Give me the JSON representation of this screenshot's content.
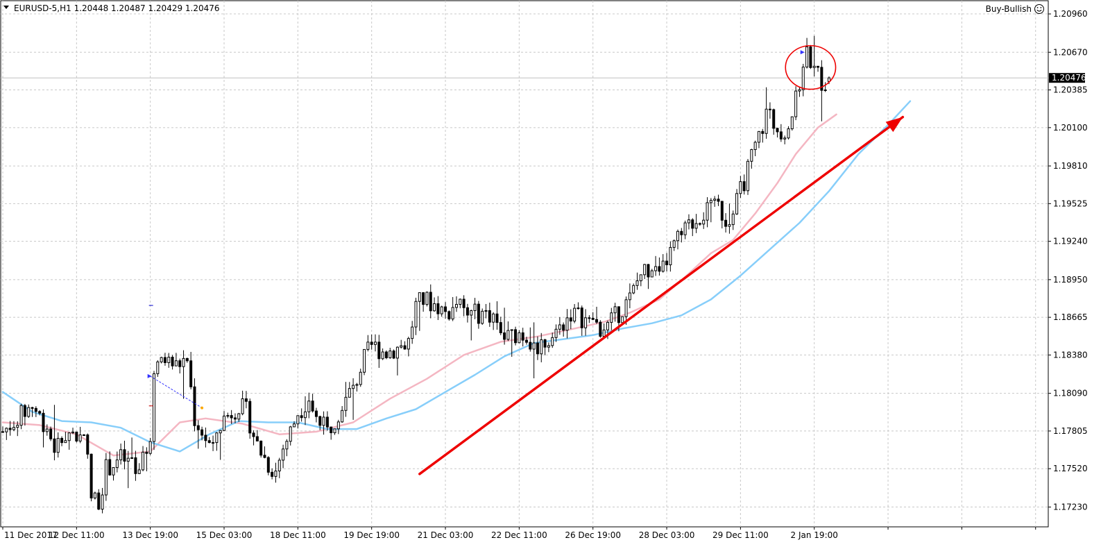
{
  "header": {
    "symbol_info": "EURUSD-5,H1  1.20448 1.20487 1.20429 1.20476",
    "expert_name": "Buy-Bullish",
    "expert_icon": "smiley-icon"
  },
  "colors": {
    "background": "#ffffff",
    "grid": "#c8c8c8",
    "candle": "#000000",
    "ma_fast": "#f4b6c2",
    "ma_slow": "#87cefa",
    "arrow": "#ee0000",
    "circle": "#ee0000",
    "bid_line": "#c0c0c0"
  },
  "chart_data": {
    "type": "candlestick",
    "symbol": "EURUSD-5",
    "timeframe": "H1",
    "last_ohlc": {
      "open": 1.20448,
      "high": 1.20487,
      "low": 1.20429,
      "close": 1.20476
    },
    "current_price": "1.20476",
    "ylim": [
      1.1708,
      1.2106
    ],
    "y_ticks": [
      "1.20960",
      "1.20670",
      "1.20385",
      "1.20100",
      "1.19810",
      "1.19525",
      "1.19240",
      "1.18950",
      "1.18665",
      "1.18380",
      "1.18090",
      "1.17805",
      "1.17520",
      "1.17230"
    ],
    "x_labels": [
      {
        "i": 0,
        "label": "11 Dec 2017"
      },
      {
        "i": 20,
        "label": "12 Dec 11:00"
      },
      {
        "i": 40,
        "label": "13 Dec 19:00"
      },
      {
        "i": 60,
        "label": "15 Dec 03:00"
      },
      {
        "i": 80,
        "label": "18 Dec 11:00"
      },
      {
        "i": 100,
        "label": "19 Dec 19:00"
      },
      {
        "i": 120,
        "label": "21 Dec 03:00"
      },
      {
        "i": 140,
        "label": "22 Dec 11:00"
      },
      {
        "i": 160,
        "label": "26 Dec 19:00"
      },
      {
        "i": 180,
        "label": "28 Dec 03:00"
      },
      {
        "i": 200,
        "label": "29 Dec 11:00"
      },
      {
        "i": 220,
        "label": "2 Jan 19:00"
      }
    ],
    "visible_slots": 284,
    "close_path": [
      [
        0,
        1.178
      ],
      [
        4,
        1.179
      ],
      [
        8,
        1.18
      ],
      [
        12,
        1.1783
      ],
      [
        14,
        1.1768
      ],
      [
        18,
        1.178
      ],
      [
        21,
        1.1775
      ],
      [
        22,
        1.1785
      ],
      [
        24,
        1.173
      ],
      [
        26,
        1.1728
      ],
      [
        28,
        1.1752
      ],
      [
        32,
        1.176
      ],
      [
        35,
        1.1755
      ],
      [
        37,
        1.1745
      ],
      [
        40,
        1.178
      ],
      [
        41,
        1.182
      ],
      [
        43,
        1.1835
      ],
      [
        47,
        1.183
      ],
      [
        50,
        1.1835
      ],
      [
        52,
        1.179
      ],
      [
        55,
        1.1775
      ],
      [
        57,
        1.1765
      ],
      [
        58,
        1.178
      ],
      [
        60,
        1.179
      ],
      [
        64,
        1.18
      ],
      [
        66,
        1.1795
      ],
      [
        69,
        1.177
      ],
      [
        72,
        1.1755
      ],
      [
        74,
        1.175
      ],
      [
        76,
        1.1768
      ],
      [
        78,
        1.178
      ],
      [
        80,
        1.1795
      ],
      [
        83,
        1.1805
      ],
      [
        85,
        1.179
      ],
      [
        88,
        1.178
      ],
      [
        90,
        1.179
      ],
      [
        93,
        1.1805
      ],
      [
        96,
        1.182
      ],
      [
        98,
        1.1835
      ],
      [
        100,
        1.1845
      ],
      [
        104,
        1.184
      ],
      [
        108,
        1.1845
      ],
      [
        110,
        1.1848
      ],
      [
        112,
        1.1875
      ],
      [
        114,
        1.188
      ],
      [
        118,
        1.1875
      ],
      [
        120,
        1.187
      ],
      [
        124,
        1.1875
      ],
      [
        126,
        1.1868
      ],
      [
        130,
        1.187
      ],
      [
        133,
        1.1868
      ],
      [
        136,
        1.185
      ],
      [
        140,
        1.1855
      ],
      [
        143,
        1.185
      ],
      [
        145,
        1.1845
      ],
      [
        148,
        1.185
      ],
      [
        150,
        1.1855
      ],
      [
        154,
        1.187
      ],
      [
        158,
        1.1865
      ],
      [
        160,
        1.1858
      ],
      [
        164,
        1.186
      ],
      [
        167,
        1.187
      ],
      [
        170,
        1.188
      ],
      [
        173,
        1.19
      ],
      [
        176,
        1.1905
      ],
      [
        178,
        1.1895
      ],
      [
        180,
        1.191
      ],
      [
        183,
        1.1925
      ],
      [
        186,
        1.1935
      ],
      [
        190,
        1.1945
      ],
      [
        194,
        1.195
      ],
      [
        196,
        1.194
      ],
      [
        198,
        1.1945
      ],
      [
        201,
        1.197
      ],
      [
        204,
        1.1995
      ],
      [
        207,
        1.202
      ],
      [
        210,
        1.201
      ],
      [
        212,
        1.2008
      ],
      [
        214,
        1.202
      ],
      [
        216,
        1.204
      ],
      [
        217,
        1.2062
      ],
      [
        218,
        1.2065
      ],
      [
        220,
        1.206
      ],
      [
        222,
        1.2045
      ],
      [
        224,
        1.2048
      ]
    ],
    "series": [
      {
        "name": "",
        "kind": "ma_fast",
        "points": [
          [
            0,
            1.1787
          ],
          [
            10,
            1.1785
          ],
          [
            20,
            1.1778
          ],
          [
            30,
            1.1762
          ],
          [
            40,
            1.1765
          ],
          [
            48,
            1.1787
          ],
          [
            55,
            1.179
          ],
          [
            65,
            1.1786
          ],
          [
            75,
            1.1778
          ],
          [
            85,
            1.178
          ],
          [
            95,
            1.1787
          ],
          [
            105,
            1.1805
          ],
          [
            115,
            1.182
          ],
          [
            125,
            1.1838
          ],
          [
            135,
            1.1848
          ],
          [
            145,
            1.1852
          ],
          [
            155,
            1.1858
          ],
          [
            163,
            1.1863
          ],
          [
            170,
            1.187
          ],
          [
            178,
            1.188
          ],
          [
            185,
            1.1897
          ],
          [
            192,
            1.1915
          ],
          [
            198,
            1.1925
          ],
          [
            204,
            1.1945
          ],
          [
            210,
            1.1968
          ],
          [
            215,
            1.199
          ],
          [
            221,
            1.201
          ],
          [
            226,
            1.202
          ]
        ]
      },
      {
        "name": "",
        "kind": "ma_slow",
        "points": [
          [
            0,
            1.181
          ],
          [
            8,
            1.1795
          ],
          [
            16,
            1.1788
          ],
          [
            24,
            1.1787
          ],
          [
            32,
            1.1783
          ],
          [
            40,
            1.1772
          ],
          [
            48,
            1.1765
          ],
          [
            56,
            1.1778
          ],
          [
            64,
            1.1788
          ],
          [
            72,
            1.1787
          ],
          [
            80,
            1.1787
          ],
          [
            88,
            1.1782
          ],
          [
            96,
            1.1782
          ],
          [
            104,
            1.179
          ],
          [
            112,
            1.1797
          ],
          [
            120,
            1.181
          ],
          [
            128,
            1.1823
          ],
          [
            136,
            1.1837
          ],
          [
            144,
            1.1847
          ],
          [
            152,
            1.185
          ],
          [
            160,
            1.1853
          ],
          [
            168,
            1.1858
          ],
          [
            176,
            1.1862
          ],
          [
            184,
            1.1868
          ],
          [
            192,
            1.188
          ],
          [
            200,
            1.1898
          ],
          [
            208,
            1.1918
          ],
          [
            216,
            1.1938
          ],
          [
            224,
            1.1962
          ],
          [
            232,
            1.199
          ],
          [
            240,
            1.2012
          ],
          [
            246,
            1.203
          ]
        ]
      }
    ],
    "trend_arrow": {
      "from": [
        113,
        1.1748
      ],
      "to": [
        244,
        1.2018
      ]
    },
    "highlight_circle": {
      "center": [
        219,
        1.20555
      ],
      "rx": 6.8,
      "ry": 0.00165
    },
    "trade_markers": {
      "from": [
        40,
        1.1822
      ],
      "to": [
        54,
        1.1798
      ]
    },
    "stray_marks": [
      [
        40,
        1.18755
      ],
      [
        40,
        1.17995
      ]
    ]
  }
}
